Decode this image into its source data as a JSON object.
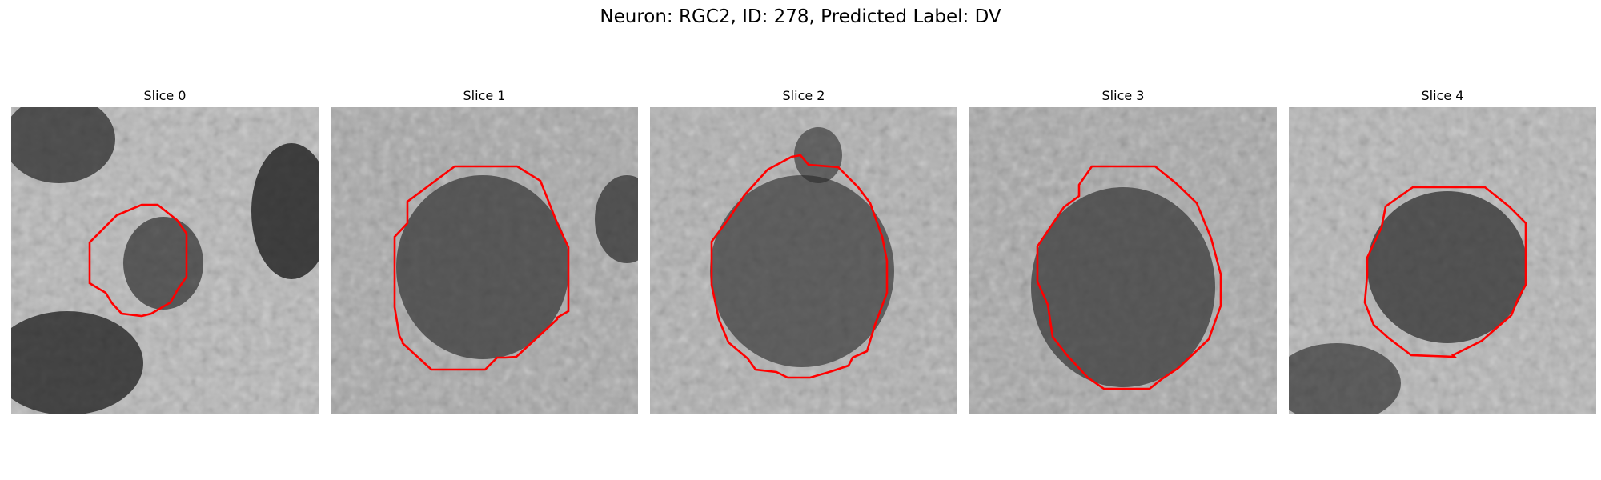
{
  "title": "Neuron: RGC2, ID: 278, Predicted Label: DV",
  "contour_color": "#ff0000",
  "panels": [
    {
      "label": "Slice 0"
    },
    {
      "label": "Slice 1"
    },
    {
      "label": "Slice 2"
    },
    {
      "label": "Slice 3"
    },
    {
      "label": "Slice 4"
    }
  ]
}
